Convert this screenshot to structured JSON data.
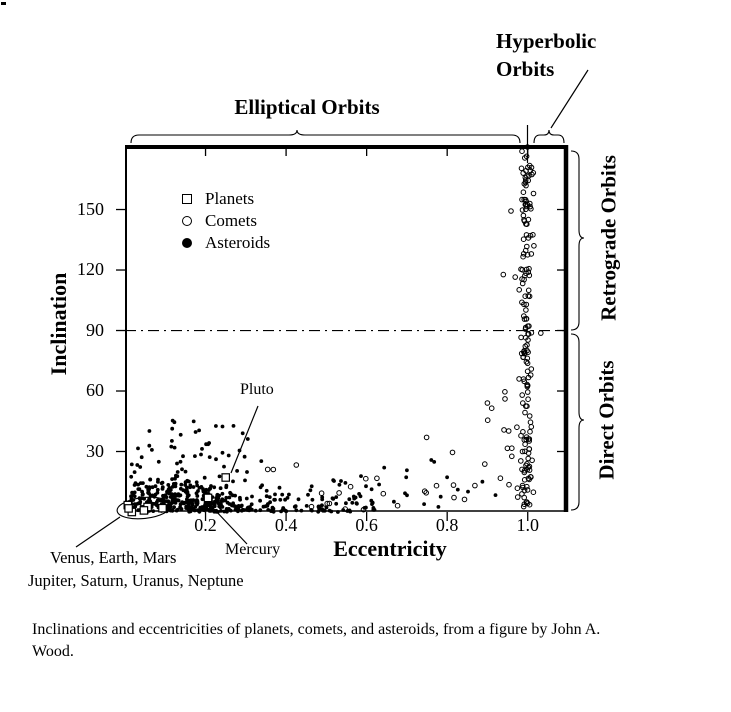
{
  "page": {
    "background": "#ffffff",
    "ink": "#000000"
  },
  "caption": "Inclinations and eccentricities of planets, comets, and asteroids, from a figure by John A. Wood.",
  "chart_data": {
    "type": "scatter",
    "xlabel": "Eccentricity",
    "ylabel": "Inclination",
    "xlim": [
      0,
      1.1
    ],
    "ylim": [
      0,
      182
    ],
    "x_ticks": [
      "0.2",
      "0.4",
      "0.6",
      "0.8",
      "1.0"
    ],
    "y_ticks": [
      "30",
      "60",
      "90",
      "120",
      "150"
    ],
    "grid": false,
    "reference_line": {
      "axis": "inclination",
      "value": 90,
      "style": "dashed"
    },
    "regions": {
      "elliptical": "Elliptical Orbits",
      "hyperbolic": "Hyperbolic\nOrbits",
      "retrograde": "Retrograde Orbits",
      "direct": "Direct Orbits"
    },
    "legend": [
      {
        "label": "Planets",
        "marker": "open-square"
      },
      {
        "label": "Comets",
        "marker": "open-circle"
      },
      {
        "label": "Asteroids",
        "marker": "filled-circle"
      }
    ],
    "annotations": {
      "pluto": "Pluto",
      "mercury": "Mercury",
      "inner_planets": "Venus, Earth, Mars",
      "outer_planets": "Jupiter, Saturn, Uranus, Neptune"
    },
    "planets": [
      {
        "name": "Mercury",
        "e": 0.206,
        "i": 7.0
      },
      {
        "name": "Venus",
        "e": 0.007,
        "i": 3.4
      },
      {
        "name": "Earth",
        "e": 0.017,
        "i": 0.0
      },
      {
        "name": "Mars",
        "e": 0.093,
        "i": 1.9
      },
      {
        "name": "Jupiter",
        "e": 0.048,
        "i": 1.3
      },
      {
        "name": "Saturn",
        "e": 0.056,
        "i": 2.5
      },
      {
        "name": "Uranus",
        "e": 0.047,
        "i": 0.8
      },
      {
        "name": "Neptune",
        "e": 0.009,
        "i": 1.8
      },
      {
        "name": "Pluto",
        "e": 0.25,
        "i": 17.1
      }
    ],
    "seed": 1337,
    "comet_groups": [
      {
        "n": 150,
        "e": {
          "dist": "gauss",
          "mu": 0.998,
          "sd": 0.008,
          "min": 0.975,
          "max": 1.025
        },
        "i": {
          "dist": "uniform",
          "min": 2,
          "max": 181
        }
      },
      {
        "n": 28,
        "e": {
          "dist": "gauss",
          "mu": 0.985,
          "sd": 0.02,
          "min": 0.92,
          "max": 1.04
        },
        "i": {
          "dist": "uniform",
          "min": 4,
          "max": 178
        }
      },
      {
        "n": 26,
        "e": {
          "dist": "uniform",
          "min": 0.33,
          "max": 0.92
        },
        "i": {
          "dist": "halfgauss",
          "sd": 18,
          "min": 1,
          "max": 55
        }
      },
      {
        "n": 10,
        "e": {
          "dist": "uniform",
          "min": 0.88,
          "max": 0.965
        },
        "i": {
          "dist": "uniform",
          "min": 5,
          "max": 60
        }
      }
    ],
    "asteroid_groups": [
      {
        "n": 340,
        "e": {
          "dist": "gauss",
          "mu": 0.16,
          "sd": 0.075,
          "min": 0.015,
          "max": 0.42
        },
        "i": {
          "dist": "halfgauss",
          "sd": 8.5,
          "min": 0.4,
          "max": 30
        }
      },
      {
        "n": 40,
        "e": {
          "dist": "gauss",
          "mu": 0.17,
          "sd": 0.09,
          "min": 0.03,
          "max": 0.42
        },
        "i": {
          "dist": "uniform",
          "min": 22,
          "max": 46
        }
      },
      {
        "n": 80,
        "e": {
          "dist": "uniform",
          "min": 0.3,
          "max": 0.64
        },
        "i": {
          "dist": "halfgauss",
          "sd": 7,
          "min": 0.5,
          "max": 24
        }
      },
      {
        "n": 16,
        "e": {
          "dist": "uniform",
          "min": 0.64,
          "max": 0.92
        },
        "i": {
          "dist": "uniform",
          "min": 1,
          "max": 26
        }
      },
      {
        "n": 50,
        "e": {
          "dist": "uniform",
          "min": 0.03,
          "max": 0.62
        },
        "i": {
          "dist": "uniform",
          "min": 0,
          "max": 1.2
        }
      }
    ]
  }
}
